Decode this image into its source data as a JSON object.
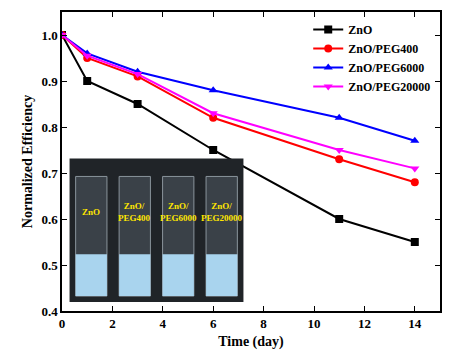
{
  "chart_data": {
    "type": "line",
    "x_label": "Time (day)",
    "y_label": "Normalized Efficiency",
    "x": [
      0,
      1,
      3,
      6,
      11,
      14
    ],
    "series": [
      {
        "name": "ZnO",
        "color": "#000000",
        "marker": "square",
        "line_style": "solid",
        "values": [
          1.0,
          0.9,
          0.85,
          0.75,
          0.6,
          0.55
        ]
      },
      {
        "name": "ZnO/PEG400",
        "color": "#ff0000",
        "marker": "circle",
        "line_style": "solid",
        "values": [
          1.0,
          0.95,
          0.91,
          0.82,
          0.73,
          0.68
        ]
      },
      {
        "name": "ZnO/PEG6000",
        "color": "#0000ff",
        "marker": "triangle-up",
        "line_style": "solid",
        "values": [
          1.0,
          0.96,
          0.92,
          0.88,
          0.82,
          0.77
        ]
      },
      {
        "name": "ZnO/PEG20000",
        "color": "#ff00ff",
        "marker": "triangle-down",
        "line_style": "solid",
        "values": [
          1.0,
          0.955,
          0.915,
          0.83,
          0.75,
          0.71
        ]
      }
    ],
    "xlim": [
      0,
      15
    ],
    "xticks": [
      0,
      2,
      4,
      6,
      8,
      10,
      12,
      14
    ],
    "ylim": [
      0.4,
      1.05
    ],
    "yticks": [
      0.4,
      0.5,
      0.6,
      0.7,
      0.8,
      0.9,
      {
        "value": 1.0,
        "label": "1.0"
      }
    ],
    "grid": false,
    "legend": "top-right",
    "annotations": [
      "ZnO",
      "ZnO/PEG400",
      "ZnO/PEG6000",
      "ZnO/PEG20000"
    ]
  }
}
